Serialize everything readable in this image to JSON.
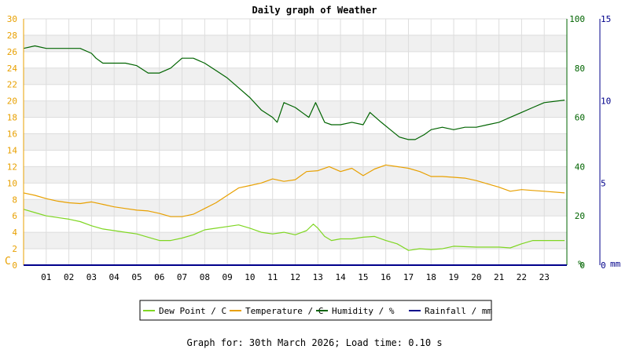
{
  "chart_data": {
    "type": "line",
    "title": "Daily graph of Weather",
    "x_tick_labels": [
      "01",
      "02",
      "03",
      "04",
      "05",
      "06",
      "07",
      "08",
      "09",
      "10",
      "11",
      "12",
      "13",
      "14",
      "15",
      "16",
      "17",
      "18",
      "19",
      "20",
      "21",
      "22",
      "23"
    ],
    "x_range_hours": [
      0,
      24
    ],
    "left_axis": {
      "unit": "C",
      "min": 0,
      "max": 30,
      "ticks": [
        0,
        2,
        4,
        6,
        8,
        10,
        12,
        14,
        16,
        18,
        20,
        22,
        24,
        26,
        28,
        30
      ],
      "color": "#e8a000"
    },
    "humidity_axis": {
      "unit": "%",
      "min": 0,
      "max": 100,
      "ticks": [
        0,
        20,
        40,
        60,
        80,
        100
      ],
      "color": "#006400"
    },
    "rainfall_axis": {
      "unit": "mm",
      "min": 0,
      "max": 15,
      "ticks": [
        0,
        5,
        10,
        15
      ],
      "color": "#00008b"
    },
    "grid": true,
    "legend_position": "bottom",
    "series": [
      {
        "name": "Dew Point / C",
        "axis": "left",
        "color": "#7fd622",
        "x": [
          0,
          0.5,
          1,
          1.5,
          2,
          2.5,
          3,
          3.5,
          4,
          4.5,
          5,
          5.5,
          6,
          6.5,
          7,
          7.5,
          8,
          8.5,
          9,
          9.5,
          10,
          10.5,
          11,
          11.5,
          12,
          12.5,
          12.8,
          13,
          13.3,
          13.6,
          14,
          14.5,
          15,
          15.5,
          16,
          16.5,
          17,
          17.5,
          18,
          18.5,
          19,
          20,
          21,
          21.5,
          22,
          22.5,
          23,
          23.9
        ],
        "values": [
          6.8,
          6.4,
          6.0,
          5.8,
          5.6,
          5.3,
          4.8,
          4.4,
          4.2,
          4.0,
          3.8,
          3.4,
          3.0,
          3.0,
          3.3,
          3.7,
          4.3,
          4.5,
          4.7,
          4.9,
          4.5,
          4.0,
          3.8,
          4.0,
          3.7,
          4.2,
          5.0,
          4.5,
          3.5,
          3.0,
          3.2,
          3.2,
          3.4,
          3.5,
          3.0,
          2.6,
          1.8,
          2.0,
          1.9,
          2.0,
          2.3,
          2.2,
          2.2,
          2.1,
          2.6,
          3.0,
          3.0,
          3.0
        ]
      },
      {
        "name": "Temperature / C",
        "axis": "left",
        "color": "#e8a000",
        "x": [
          0,
          0.5,
          1,
          1.5,
          2,
          2.5,
          3,
          3.5,
          4,
          4.5,
          5,
          5.5,
          6,
          6.5,
          7,
          7.5,
          8,
          8.5,
          9,
          9.5,
          10,
          10.5,
          11,
          11.5,
          12,
          12.5,
          13,
          13.5,
          14,
          14.5,
          15,
          15.5,
          16,
          16.5,
          17,
          17.5,
          18,
          18.5,
          19,
          19.5,
          20,
          20.5,
          21,
          21.5,
          22,
          22.5,
          23,
          23.9
        ],
        "values": [
          8.8,
          8.5,
          8.1,
          7.8,
          7.6,
          7.5,
          7.7,
          7.4,
          7.1,
          6.9,
          6.7,
          6.6,
          6.3,
          5.9,
          5.9,
          6.2,
          6.9,
          7.6,
          8.5,
          9.4,
          9.7,
          10.0,
          10.5,
          10.2,
          10.4,
          11.4,
          11.5,
          12.0,
          11.4,
          11.8,
          10.9,
          11.7,
          12.2,
          12.0,
          11.8,
          11.4,
          10.8,
          10.8,
          10.7,
          10.6,
          10.3,
          9.9,
          9.5,
          9.0,
          9.2,
          9.1,
          9.0,
          8.8
        ]
      },
      {
        "name": "Humidity / %",
        "axis": "humidity",
        "color": "#006400",
        "x": [
          0,
          0.5,
          1,
          1.5,
          2,
          2.5,
          3,
          3.2,
          3.5,
          4,
          4.5,
          5,
          5.5,
          6,
          6.5,
          7,
          7.5,
          8,
          8.5,
          9,
          9.5,
          10,
          10.5,
          11,
          11.2,
          11.5,
          12,
          12.3,
          12.6,
          12.9,
          13.3,
          13.6,
          14,
          14.5,
          15,
          15.3,
          15.8,
          16.2,
          16.6,
          17,
          17.3,
          17.7,
          18,
          18.5,
          19,
          19.5,
          20,
          20.5,
          21,
          21.5,
          22,
          22.5,
          23,
          23.9
        ],
        "values": [
          88,
          89,
          88,
          88,
          88,
          88,
          86,
          84,
          82,
          82,
          82,
          81,
          78,
          78,
          80,
          84,
          84,
          82,
          79,
          76,
          72,
          68,
          63,
          60,
          58,
          66,
          64,
          62,
          60,
          66,
          58,
          57,
          57,
          58,
          57,
          62,
          58,
          55,
          52,
          51,
          51,
          53,
          55,
          56,
          55,
          56,
          56,
          57,
          58,
          60,
          62,
          64,
          66,
          67
        ]
      },
      {
        "name": "Rainfall / mm",
        "axis": "rainfall",
        "color": "#00008b",
        "x": [
          0,
          23.9
        ],
        "values": [
          0,
          0
        ]
      }
    ]
  },
  "footer": {
    "text": "Graph for: 30th March 2026; Load time: 0.10 s"
  }
}
